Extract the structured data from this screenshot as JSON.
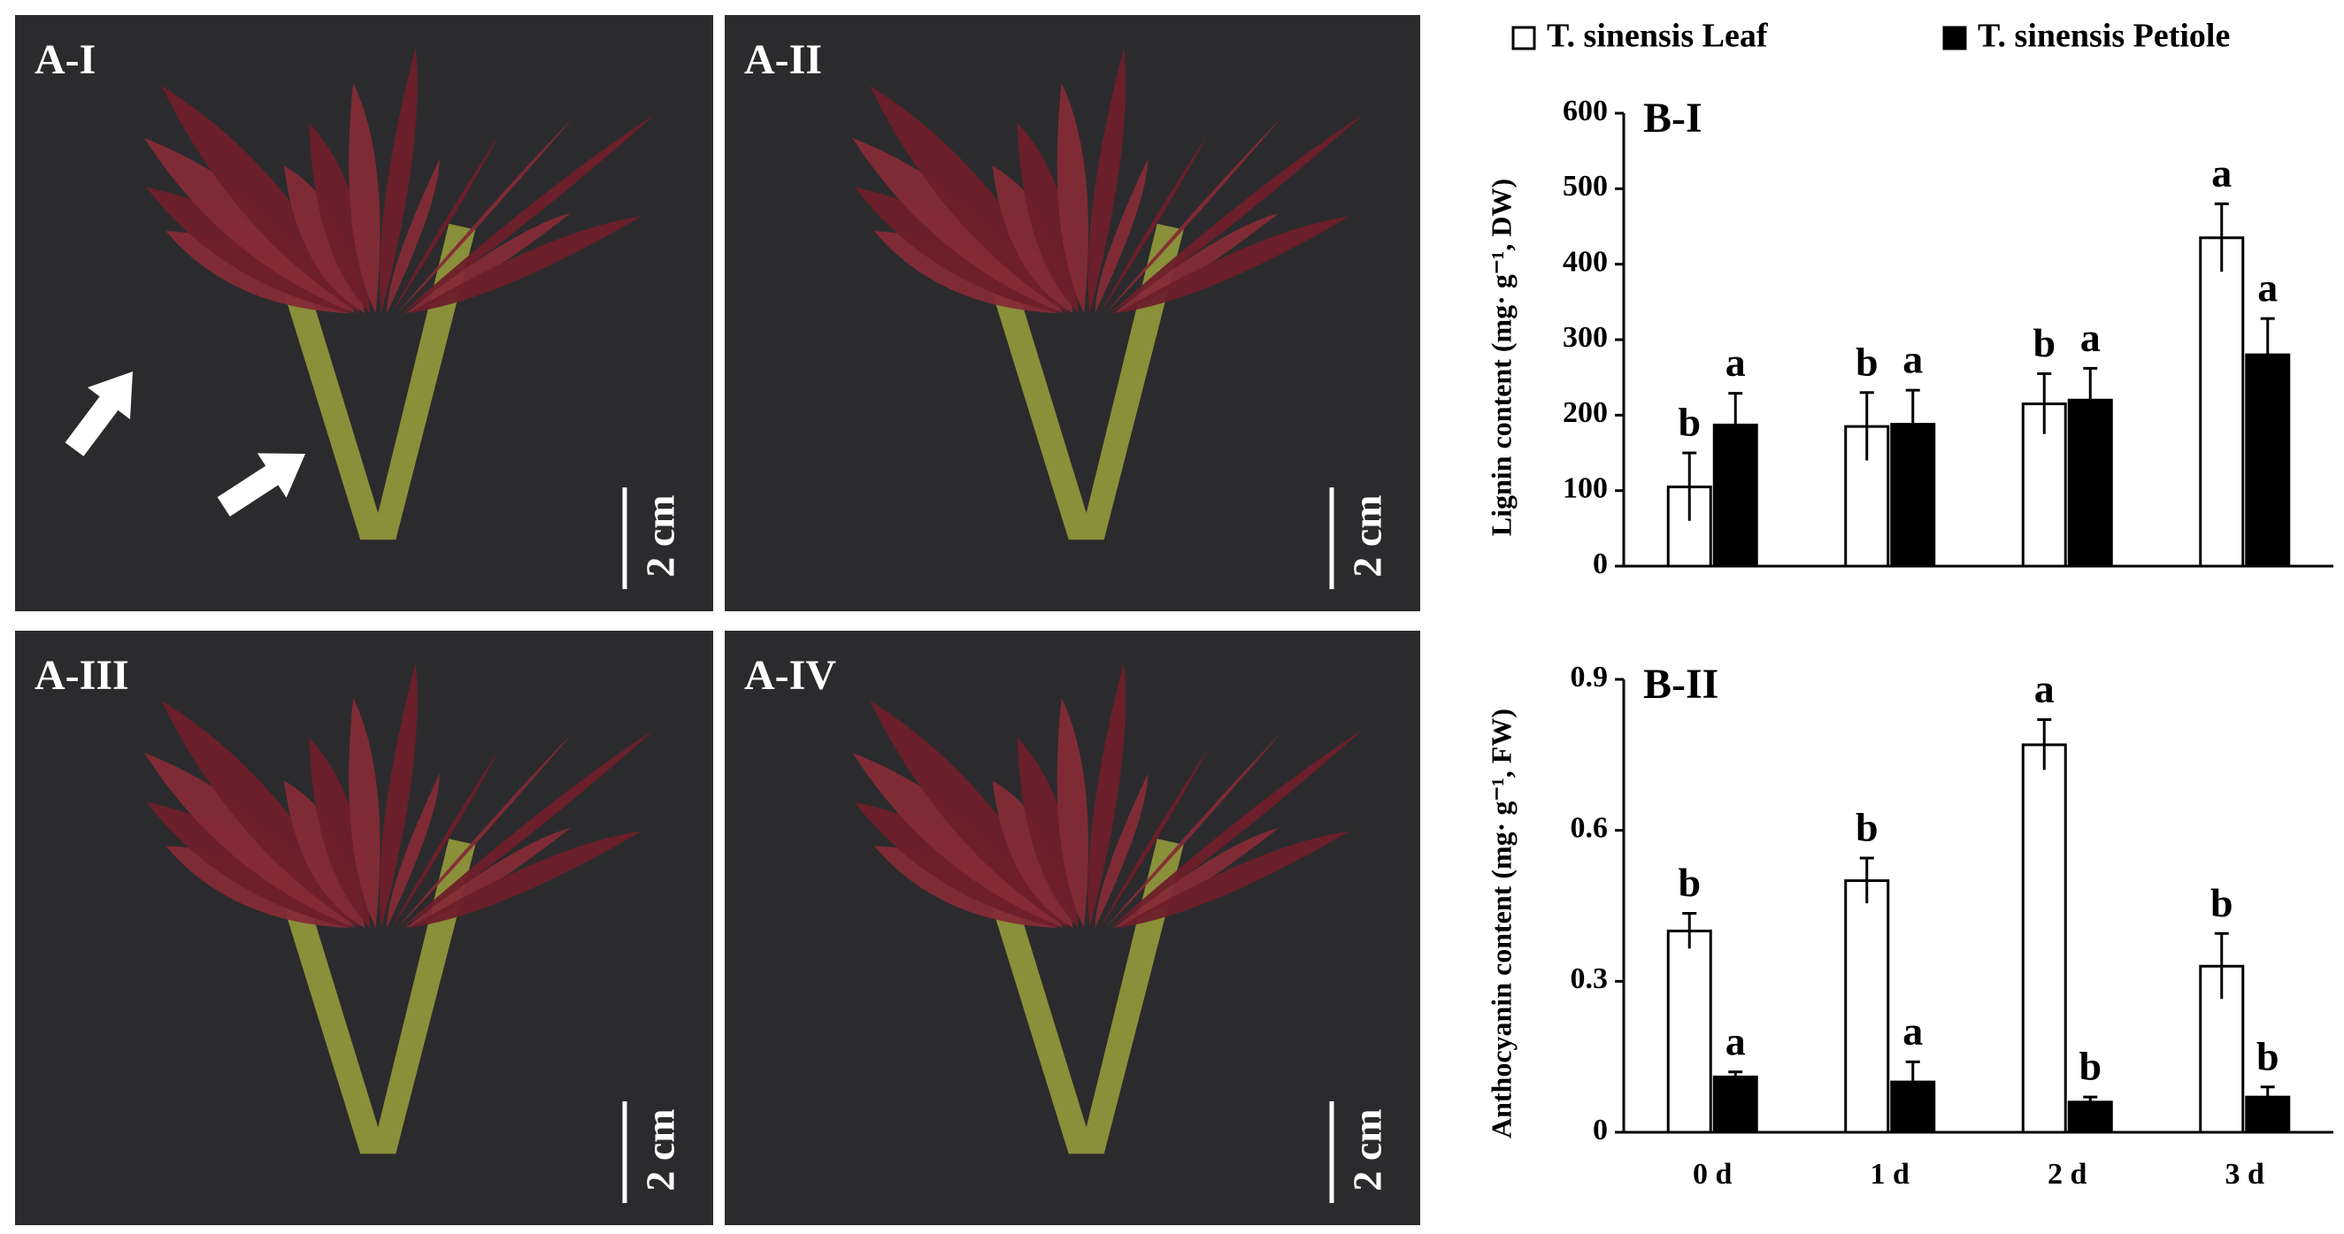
{
  "panels": [
    {
      "label": "A-I",
      "scale": "2 cm"
    },
    {
      "label": "A-II",
      "scale": "2 cm"
    },
    {
      "label": "A-III",
      "scale": "2 cm"
    },
    {
      "label": "A-IV",
      "scale": "2 cm"
    }
  ],
  "chart_data": [
    {
      "type": "bar",
      "title": "B-I",
      "y_label": "Lignin content (mg· g⁻¹, DW)",
      "ylim": [
        0,
        600
      ],
      "yticks": [
        0,
        100,
        200,
        300,
        400,
        500,
        600
      ],
      "series": [
        {
          "name": "T. sinensis Leaf",
          "color": "#ffffff",
          "values": [
            105,
            185,
            215,
            435
          ],
          "errors": [
            45,
            45,
            40,
            45
          ],
          "labels": [
            "b",
            "b",
            "b",
            "a"
          ]
        },
        {
          "name": "T. sinensis Petiole",
          "color": "#000000",
          "values": [
            187,
            188,
            220,
            280
          ],
          "errors": [
            42,
            45,
            42,
            48
          ],
          "labels": [
            "a",
            "a",
            "a",
            "a"
          ]
        }
      ]
    },
    {
      "type": "bar",
      "title": "B-II",
      "y_label": "Anthocyanin content (mg· g⁻¹, FW)",
      "categories": [
        "0 d",
        "1 d",
        "2 d",
        "3 d"
      ],
      "ylim": [
        0,
        0.9
      ],
      "yticks": [
        0,
        0.3,
        0.6,
        0.9
      ],
      "series": [
        {
          "color": "#ffffff",
          "values": [
            0.4,
            0.5,
            0.77,
            0.33
          ],
          "errors": [
            0.035,
            0.045,
            0.05,
            0.065
          ],
          "labels": [
            "b",
            "b",
            "a",
            "b"
          ]
        },
        {
          "color": "#000000",
          "values": [
            0.11,
            0.1,
            0.06,
            0.07
          ],
          "errors": [
            0.01,
            0.04,
            0.01,
            0.02
          ],
          "labels": [
            "a",
            "a",
            "b",
            "b"
          ]
        }
      ]
    }
  ]
}
